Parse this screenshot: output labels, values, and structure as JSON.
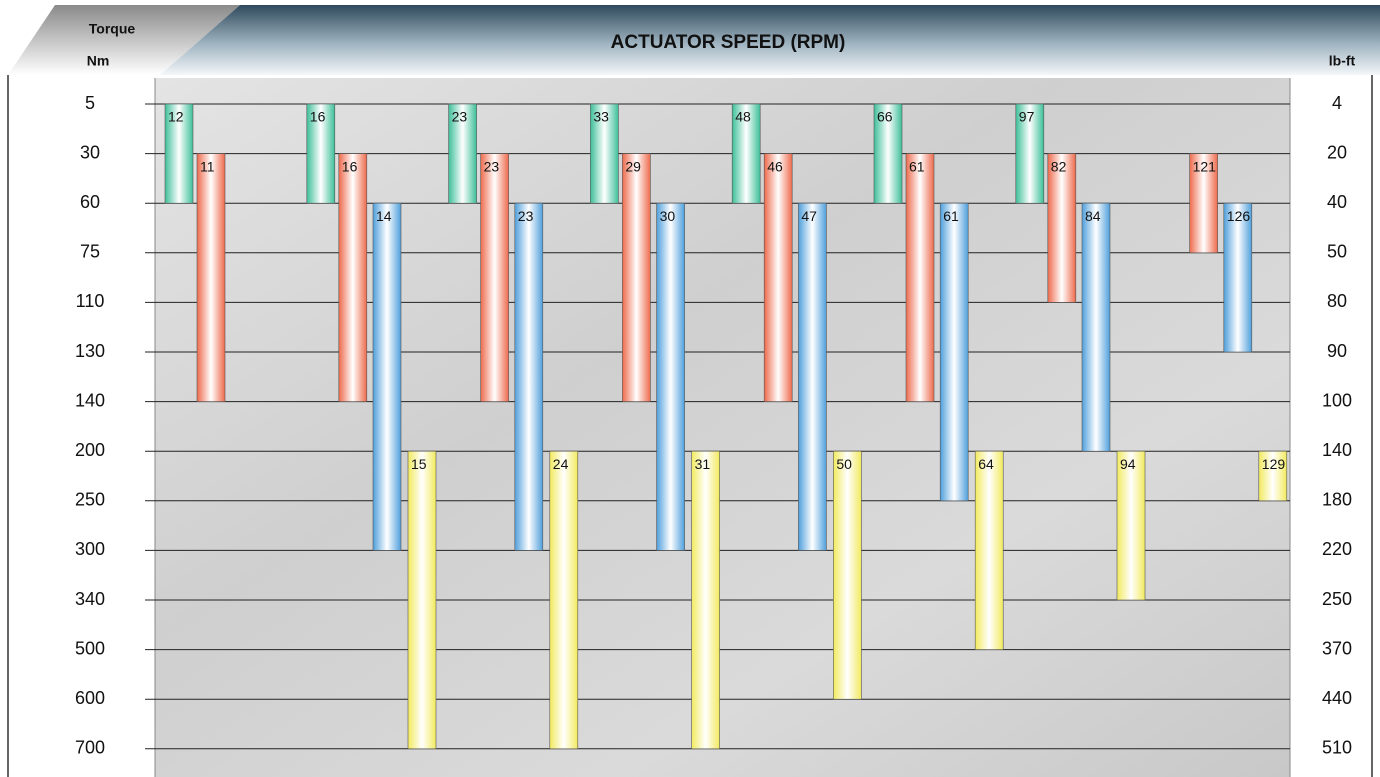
{
  "chart_data": {
    "type": "range-bar",
    "title": "ACTUATOR SPEED (RPM)",
    "y_label": "Torque",
    "y_unit": "Nm",
    "y2_unit": "lb-ft",
    "grid": true,
    "yticks": [
      5,
      30,
      60,
      75,
      110,
      130,
      140,
      200,
      250,
      300,
      340,
      500,
      600,
      700
    ],
    "y2ticks": [
      4,
      20,
      40,
      50,
      80,
      90,
      100,
      140,
      180,
      220,
      250,
      370,
      440,
      510
    ],
    "series": [
      {
        "color": "#3dbf98",
        "values": [
          12,
          16,
          23,
          33,
          48,
          66,
          97
        ],
        "start": [
          5,
          5,
          5,
          5,
          5,
          5,
          5
        ],
        "end": [
          60,
          60,
          60,
          60,
          60,
          60,
          60
        ]
      },
      {
        "color": "#ee6a4c",
        "values": [
          11,
          16,
          23,
          29,
          46,
          61,
          82,
          121
        ],
        "start": [
          30,
          30,
          30,
          30,
          30,
          30,
          30,
          30
        ],
        "end": [
          140,
          140,
          140,
          140,
          140,
          140,
          110,
          75
        ]
      },
      {
        "color": "#4f9fdc",
        "values": [
          14,
          23,
          30,
          47,
          61,
          84,
          126
        ],
        "start": [
          60,
          60,
          60,
          60,
          60,
          60,
          60
        ],
        "end": [
          300,
          300,
          300,
          300,
          250,
          200,
          130
        ]
      },
      {
        "color": "#f2ea5e",
        "values": [
          15,
          24,
          31,
          50,
          64,
          94,
          129
        ],
        "start": [
          200,
          200,
          200,
          200,
          200,
          200,
          200
        ],
        "end": [
          700,
          700,
          700,
          600,
          500,
          340,
          250
        ]
      }
    ]
  }
}
